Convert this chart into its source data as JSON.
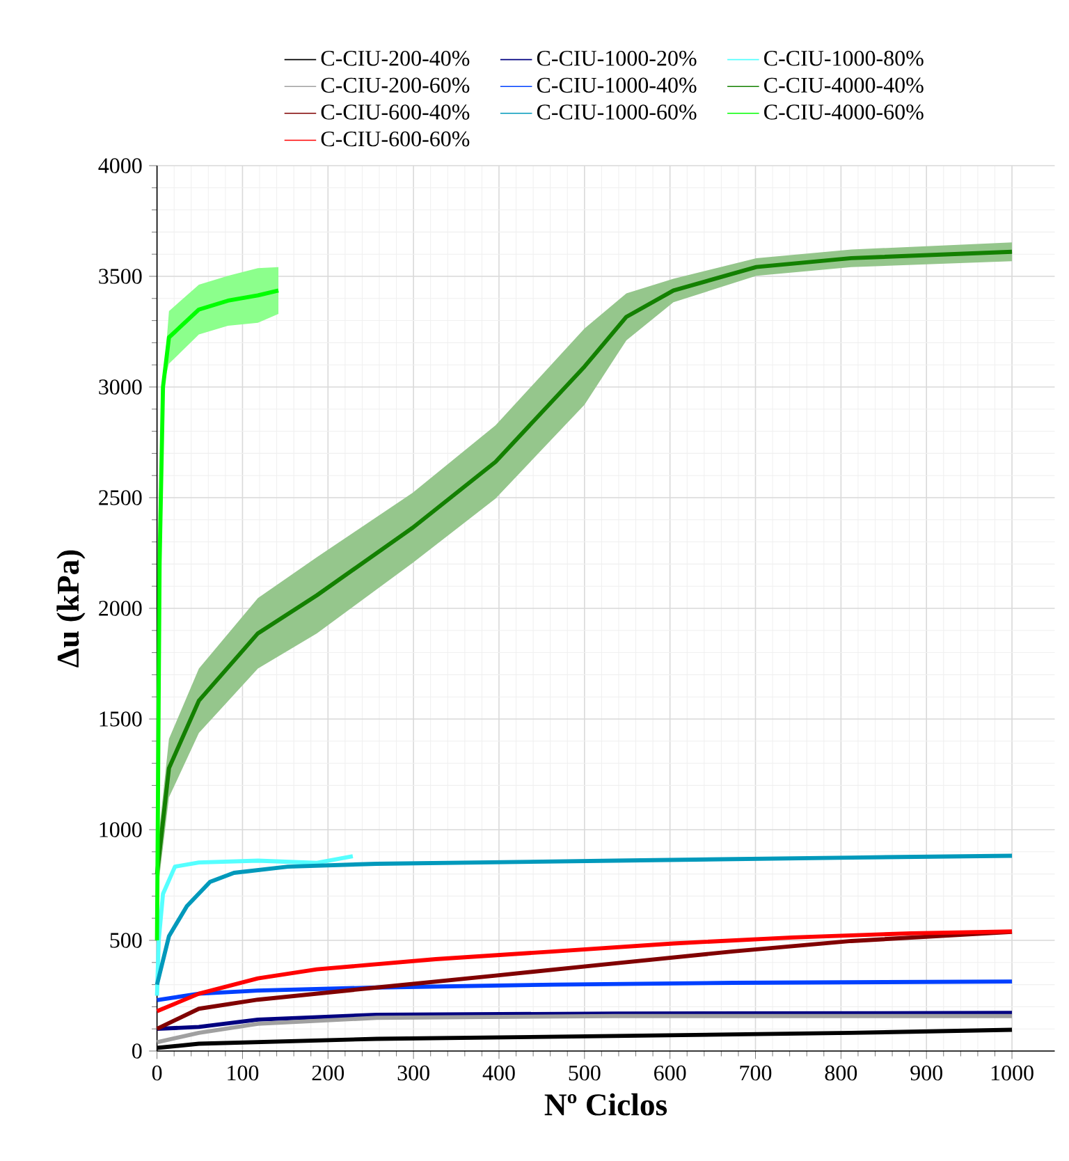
{
  "chart_data": {
    "type": "line",
    "xlabel": "Nº Ciclos",
    "ylabel": "Δu (kPa)",
    "xlim": [
      0,
      1050
    ],
    "ylim": [
      0,
      4000
    ],
    "xticks": [
      0,
      100,
      200,
      300,
      400,
      500,
      600,
      700,
      800,
      900,
      1000
    ],
    "yticks": [
      0,
      500,
      1000,
      1500,
      2000,
      2500,
      3000,
      3500,
      4000
    ],
    "grid": true,
    "legend": "top",
    "series": [
      {
        "name": "C-CIU-200-40%",
        "color": "#000000",
        "x": [
          0,
          49,
          257,
          535,
          812,
          1000
        ],
        "values": [
          14,
          33,
          55,
          68,
          82,
          96
        ]
      },
      {
        "name": "C-CIU-1000-20%",
        "color": "#000080",
        "x": [
          0,
          49,
          118,
          257,
          535,
          1000
        ],
        "values": [
          100,
          109,
          142,
          164,
          169,
          172
        ]
      },
      {
        "name": "C-CIU-1000-80%",
        "color": "#55ffff",
        "x": [
          0,
          2,
          7,
          21,
          49,
          118,
          187,
          229
        ],
        "values": [
          250,
          500,
          710,
          833,
          852,
          860,
          850,
          880
        ]
      },
      {
        "name": "C-CIU-200-60%",
        "color": "#a0a0a0",
        "x": [
          0,
          49,
          118,
          257,
          535,
          1000
        ],
        "values": [
          40,
          82,
          123,
          150,
          158,
          158
        ]
      },
      {
        "name": "C-CIU-1000-40%",
        "color": "#0040ff",
        "x": [
          0,
          49,
          118,
          257,
          465,
          674,
          1000
        ],
        "values": [
          230,
          259,
          273,
          287,
          300,
          308,
          314
        ]
      },
      {
        "name": "C-CIU-4000-40%",
        "color": "#138000",
        "x": [
          0,
          14,
          49,
          118,
          187,
          299,
          396,
          500,
          549,
          604,
          701,
          812,
          1000
        ],
        "values": [
          800,
          1278,
          1583,
          1887,
          2059,
          2364,
          2662,
          3092,
          3317,
          3436,
          3542,
          3582,
          3611
        ],
        "lower": [
          700,
          1146,
          1437,
          1728,
          1887,
          2205,
          2496,
          2920,
          3211,
          3383,
          3502,
          3542,
          3568
        ],
        "upper": [
          900,
          1410,
          1728,
          2046,
          2231,
          2522,
          2827,
          3264,
          3423,
          3489,
          3582,
          3621,
          3653
        ]
      },
      {
        "name": "C-CIU-600-40%",
        "color": "#800000",
        "x": [
          0,
          49,
          118,
          257,
          396,
          535,
          674,
          812,
          1000
        ],
        "values": [
          100,
          191,
          232,
          287,
          341,
          396,
          450,
          497,
          538
        ]
      },
      {
        "name": "C-CIU-1000-60%",
        "color": "#0099bb",
        "x": [
          0,
          14,
          35,
          62,
          90,
          153,
          257,
          535,
          812,
          1000
        ],
        "values": [
          300,
          519,
          655,
          764,
          805,
          833,
          846,
          860,
          874,
          882
        ]
      },
      {
        "name": "C-CIU-4000-60%",
        "color": "#00ff00",
        "x": [
          0,
          3,
          7,
          14,
          49,
          83,
          118,
          142
        ],
        "values": [
          500,
          2200,
          3000,
          3224,
          3350,
          3390,
          3414,
          3436
        ],
        "lower": [
          500,
          2200,
          3000,
          3105,
          3237,
          3277,
          3290,
          3330
        ],
        "upper": [
          500,
          2200,
          3000,
          3343,
          3462,
          3502,
          3537,
          3542
        ]
      },
      {
        "name": "C-CIU-600-60%",
        "color": "#ff0000",
        "x": [
          0,
          49,
          118,
          187,
          326,
          465,
          604,
          743,
          882,
          1000
        ],
        "values": [
          180,
          259,
          328,
          369,
          415,
          450,
          486,
          513,
          532,
          540
        ]
      }
    ]
  }
}
